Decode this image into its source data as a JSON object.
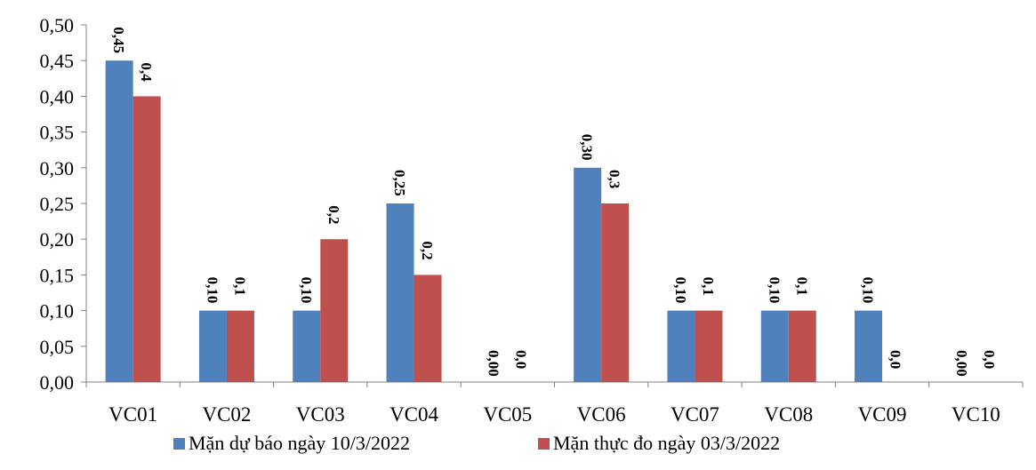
{
  "chart_data": {
    "type": "bar",
    "categories": [
      "VC01",
      "VC02",
      "VC03",
      "VC04",
      "VC05",
      "VC06",
      "VC07",
      "VC08",
      "VC09",
      "VC10"
    ],
    "series": [
      {
        "name": "Mặn dự báo ngày 10/3/2022",
        "color": "#4F81BD",
        "values": [
          0.45,
          0.1,
          0.1,
          0.25,
          0.0,
          0.3,
          0.1,
          0.1,
          0.1,
          0.0
        ],
        "labels": [
          "0,45",
          "0,10",
          "0,10",
          "0,25",
          "0,00",
          "0,30",
          "0,10",
          "0,10",
          "0,10",
          "0,00"
        ]
      },
      {
        "name": "Mặn thực đo ngày 03/3/2022",
        "color": "#C0504D",
        "values": [
          0.4,
          0.1,
          0.2,
          0.15,
          0.0,
          0.25,
          0.1,
          0.1,
          0.0,
          0.0
        ],
        "labels": [
          "0,4",
          "0,1",
          "0,2",
          "0,2",
          "0,0",
          "0,3",
          "0,1",
          "0,1",
          "0,0",
          "0,0"
        ]
      }
    ],
    "ylim": [
      0,
      0.5
    ],
    "yticks": [
      "0,00",
      "0,05",
      "0,10",
      "0,15",
      "0,20",
      "0,25",
      "0,30",
      "0,35",
      "0,40",
      "0,45",
      "0,50"
    ],
    "grid": false,
    "legend_position": "bottom"
  }
}
